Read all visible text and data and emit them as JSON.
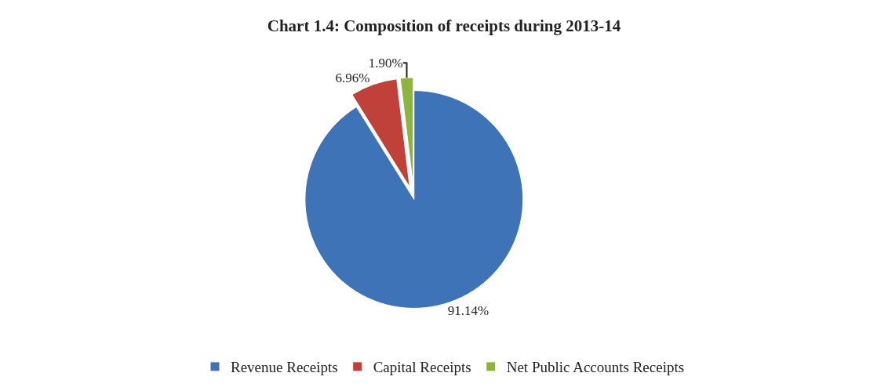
{
  "chart_data": {
    "type": "pie",
    "title": "Chart 1.4: Composition of receipts during 2013-14",
    "categories": [
      "Revenue Receipts",
      "Capital Receipts",
      "Net Public Accounts Receipts"
    ],
    "values": [
      91.14,
      6.96,
      1.9
    ],
    "value_labels": [
      "91.14%",
      "6.96%",
      "1.90%"
    ],
    "colors": [
      "#3f73b8",
      "#c0403a",
      "#8db43e"
    ],
    "legend": "bottom"
  }
}
